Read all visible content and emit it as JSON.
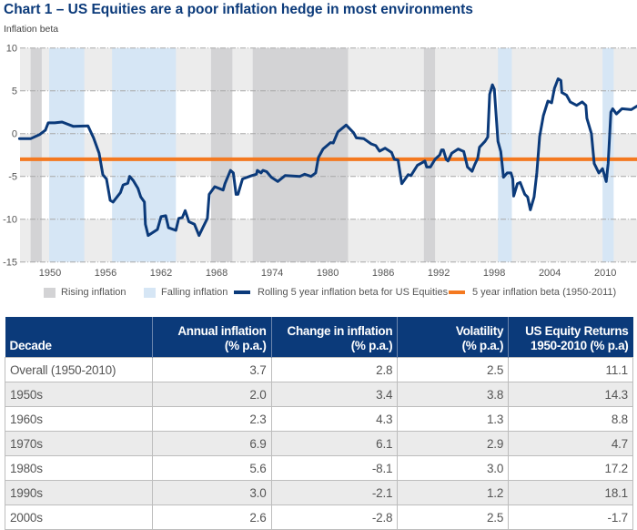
{
  "title": "Chart 1 – US Equities are a poor inflation hedge in most environments",
  "chart_data": {
    "type": "line",
    "title": "Chart 1 – US Equities are a poor inflation hedge in most environments",
    "ylabel": "Inflation beta",
    "xlabel": "",
    "ylim": [
      -15,
      10
    ],
    "xlim": [
      1946.7,
      2013.4
    ],
    "yticks": [
      "10",
      "5",
      "0",
      "-5",
      "-10",
      "-15"
    ],
    "ytick_values": [
      10,
      5,
      0,
      -5,
      -10,
      -15
    ],
    "xticks": [
      "1950",
      "1956",
      "1962",
      "1968",
      "1974",
      "1980",
      "1986",
      "1992",
      "1998",
      "2004",
      "2010"
    ],
    "grid": true,
    "legend_position": "bottom",
    "legend": [
      "Rising inflation",
      "Falling inflation",
      "Rolling 5 year inflation beta for US Equities",
      "5 year inflation beta (1950-2011)"
    ],
    "rising_inflation_periods": [
      [
        1947.9,
        1949.1
      ],
      [
        1967.4,
        1969.7
      ],
      [
        1971.9,
        1982.2
      ],
      [
        1990.4,
        1991.6
      ]
    ],
    "falling_inflation_periods": [
      [
        1949.9,
        1953.7
      ],
      [
        1956.7,
        1963.6
      ],
      [
        1998.4,
        1999.9
      ],
      [
        2009.7,
        2010.9
      ]
    ],
    "series": [
      {
        "name": "Rolling 5 year inflation beta for US Equities",
        "color": "#0b3a7a",
        "x": [
          1946.7,
          1947.9,
          1948.9,
          1949.5,
          1949.8,
          1950.5,
          1951.3,
          1952.5,
          1954.1,
          1954.7,
          1955.3,
          1955.7,
          1956.1,
          1956.5,
          1956.8,
          1957.6,
          1957.9,
          1958.4,
          1958.6,
          1959.0,
          1959.5,
          1959.8,
          1960.2,
          1960.3,
          1960.6,
          1961.6,
          1962.0,
          1962.5,
          1962.8,
          1963.6,
          1963.9,
          1964.3,
          1964.6,
          1965.0,
          1965.6,
          1966.1,
          1966.5,
          1967.0,
          1967.2,
          1967.8,
          1968.7,
          1968.9,
          1969.5,
          1969.8,
          1970.1,
          1970.3,
          1970.8,
          1971.8,
          1972.3,
          1972.4,
          1972.8,
          1973.0,
          1973.4,
          1973.9,
          1974.6,
          1975.4,
          1977.0,
          1977.5,
          1978.2,
          1978.7,
          1979.0,
          1979.5,
          1980.3,
          1980.6,
          1981.1,
          1982.0,
          1982.8,
          1983.1,
          1983.9,
          1984.7,
          1985.2,
          1985.6,
          1986.2,
          1986.9,
          1987.2,
          1987.6,
          1988.0,
          1988.7,
          1989.0,
          1989.7,
          1990.2,
          1990.5,
          1990.7,
          1991.1,
          1991.6,
          1992.1,
          1992.3,
          1992.5,
          1992.8,
          1993.0,
          1993.4,
          1994.1,
          1994.7,
          1995.1,
          1995.6,
          1995.9,
          1996.2,
          1996.4,
          1997.0,
          1997.3,
          1997.5,
          1997.8,
          1998.0,
          1998.4,
          1998.7,
          1999.0,
          1999.4,
          1999.8,
          2000.0,
          2000.1,
          2000.5,
          2000.8,
          2001.3,
          2001.6,
          2001.9,
          2002.3,
          2002.6,
          2002.9,
          2003.3,
          2003.8,
          2004.2,
          2004.5,
          2004.9,
          2005.2,
          2005.3,
          2005.8,
          2006.2,
          2006.9,
          2007.5,
          2007.9,
          2008.0,
          2008.5,
          2008.8,
          2009.3,
          2009.7,
          2010.1,
          2010.3,
          2010.6,
          2010.8,
          2011.2,
          2011.8,
          2012.8,
          2013.4
        ],
        "values": [
          -0.6,
          -0.6,
          -0.1,
          0.4,
          1.25,
          1.25,
          1.35,
          0.85,
          0.9,
          -0.5,
          -2.3,
          -4.8,
          -5.3,
          -7.8,
          -8.0,
          -6.9,
          -6.0,
          -5.8,
          -5.0,
          -5.5,
          -6.4,
          -7.4,
          -8.0,
          -10.6,
          -11.9,
          -11.2,
          -9.7,
          -9.6,
          -11.0,
          -11.3,
          -9.9,
          -9.8,
          -9.0,
          -10.3,
          -10.6,
          -11.9,
          -11.0,
          -9.9,
          -7.1,
          -6.2,
          -6.6,
          -5.85,
          -4.3,
          -4.6,
          -7.1,
          -7.1,
          -5.3,
          -4.9,
          -4.75,
          -4.3,
          -4.6,
          -4.3,
          -4.45,
          -5.1,
          -5.6,
          -4.9,
          -5.0,
          -4.75,
          -5.0,
          -4.6,
          -2.8,
          -1.8,
          -1.05,
          -1.1,
          0.2,
          1.0,
          0.1,
          -0.5,
          -0.6,
          -1.2,
          -1.4,
          -2.05,
          -1.7,
          -2.2,
          -3.0,
          -3.1,
          -5.85,
          -4.8,
          -4.9,
          -3.7,
          -3.4,
          -3.2,
          -3.9,
          -3.9,
          -3.0,
          -2.5,
          -1.9,
          -1.9,
          -3.0,
          -3.2,
          -2.3,
          -1.8,
          -2.1,
          -3.9,
          -4.4,
          -3.6,
          -2.9,
          -1.6,
          -0.9,
          -0.4,
          4.6,
          5.7,
          5.2,
          -0.9,
          -2.1,
          -5.1,
          -4.6,
          -4.6,
          -5.3,
          -7.3,
          -5.85,
          -5.7,
          -7.1,
          -7.4,
          -8.9,
          -7.4,
          -4.6,
          -0.35,
          2.1,
          3.8,
          3.6,
          5.3,
          6.4,
          6.2,
          4.8,
          4.5,
          3.7,
          3.3,
          3.7,
          3.3,
          1.8,
          0.0,
          -3.5,
          -4.6,
          -4.1,
          -5.6,
          -3.5,
          2.5,
          2.9,
          2.3,
          2.9,
          2.8,
          3.2
        ]
      },
      {
        "name": "5 year inflation beta (1950-2011)",
        "color": "#f47920",
        "constant": -3.0
      }
    ]
  },
  "legend": {
    "rising": "Rising inflation",
    "falling": "Falling inflation",
    "rolling": "Rolling 5 year inflation beta for US Equities",
    "average": "5 year inflation beta (1950-2011)"
  },
  "colors": {
    "navy": "#0b3a7a",
    "orange": "#f47920",
    "rising": "#d3d3d5",
    "falling": "#d6e6f5",
    "band": "#ececec"
  },
  "table": {
    "headers": [
      [
        "Decade"
      ],
      [
        "Annual inflation",
        "(% p.a.)"
      ],
      [
        "Change in inflation",
        "(% p.a.)"
      ],
      [
        "Volatility",
        "(% p.a.)"
      ],
      [
        "US Equity Returns",
        "1950-2010 (% p.a)"
      ]
    ],
    "rows": [
      [
        "Overall (1950-2010)",
        "3.7",
        "2.8",
        "2.5",
        "11.1"
      ],
      [
        "1950s",
        "2.0",
        "3.4",
        "3.8",
        "14.3"
      ],
      [
        "1960s",
        "2.3",
        "4.3",
        "1.3",
        "8.8"
      ],
      [
        "1970s",
        "6.9",
        "6.1",
        "2.9",
        "4.7"
      ],
      [
        "1980s",
        "5.6",
        "-8.1",
        "3.0",
        "17.2"
      ],
      [
        "1990s",
        "3.0",
        "-2.1",
        "1.2",
        "18.1"
      ],
      [
        "2000s",
        "2.6",
        "-2.8",
        "2.5",
        "-1.7"
      ]
    ]
  }
}
